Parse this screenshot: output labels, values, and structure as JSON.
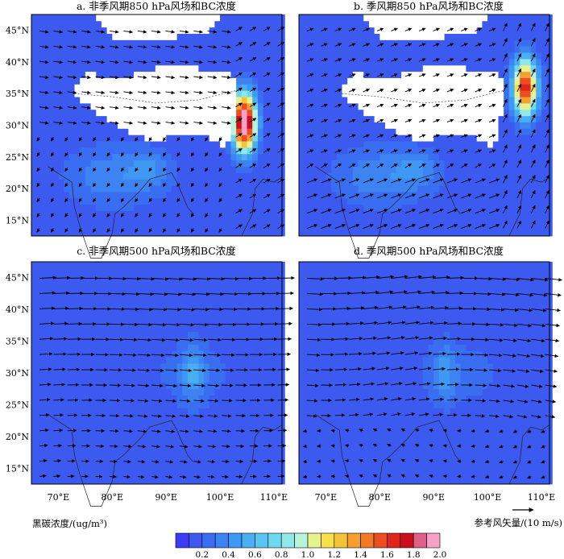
{
  "chart_data": {
    "type": "heatmap",
    "panels": [
      {
        "id": "a",
        "title": "a. 非季风期850 hPa风场和BC浓度",
        "level": "850 hPa",
        "season": "非季风期",
        "lat_labels": [
          "45°N",
          "40°N",
          "35°N",
          "30°N",
          "25°N",
          "20°N",
          "15°N"
        ],
        "lon_labels": [],
        "bc_hotspot": {
          "lon": 104.5,
          "lat": 30.5,
          "max": 2.0
        }
      },
      {
        "id": "b",
        "title": "b. 季风期850 hPa风场和BC浓度",
        "level": "850 hPa",
        "season": "季风期",
        "lat_labels": [],
        "lon_labels": [],
        "bc_hotspot": {
          "lon": 107.0,
          "lat": 36.0,
          "max": 1.6
        }
      },
      {
        "id": "c",
        "title": "c. 非季风期500 hPa风场和BC浓度",
        "level": "500 hPa",
        "season": "非季风期",
        "lat_labels": [
          "45°N",
          "40°N",
          "35°N",
          "30°N",
          "25°N",
          "20°N",
          "15°N"
        ],
        "lon_labels": [
          "70°E",
          "80°E",
          "90°E",
          "100°E",
          "110°E"
        ],
        "bc_hotspot": {
          "lon": 95.0,
          "lat": 30.0,
          "max": 0.3
        }
      },
      {
        "id": "d",
        "title": "d. 季风期500 hPa风场和BC浓度",
        "level": "500 hPa",
        "season": "季风期",
        "lat_labels": [],
        "lon_labels": [
          "70°E",
          "80°E",
          "90°E",
          "100°E",
          "110°E"
        ],
        "bc_hotspot": {
          "lon": 92.0,
          "lat": 30.0,
          "max": 0.25
        }
      }
    ],
    "xlim": [
      65,
      111.5
    ],
    "ylim": [
      12.5,
      47.5
    ],
    "colorbar": {
      "label": "黑碳浓度/(ug/m³)",
      "ticks": [
        "0.2",
        "0.4",
        "0.6",
        "0.8",
        "1.0",
        "1.2",
        "1.4",
        "1.6",
        "1.8",
        "2.0"
      ],
      "levels": [
        0.1,
        0.2,
        0.3,
        0.4,
        0.5,
        0.6,
        0.7,
        0.8,
        0.9,
        1.0,
        1.1,
        1.2,
        1.3,
        1.4,
        1.5,
        1.6,
        1.7,
        1.8,
        1.9,
        2.0
      ],
      "colors": [
        "#3c3cf0",
        "#3d5af0",
        "#3a6ef2",
        "#3d84f2",
        "#3f98f2",
        "#4aaef2",
        "#5ac4f2",
        "#6ed8ee",
        "#90e8e8",
        "#b8f4dc",
        "#e8f090",
        "#f6e04e",
        "#f6c236",
        "#f4a030",
        "#f07a28",
        "#ea4e22",
        "#e02420",
        "#c8101e",
        "#e0608c",
        "#f8a0c8"
      ]
    },
    "reference_vector": {
      "label": "参考风矢量/(10 m/s)",
      "magnitude": 10,
      "units": "m/s"
    },
    "masked_region": "Tibetan Plateau (terrain above pressure level, white)"
  }
}
